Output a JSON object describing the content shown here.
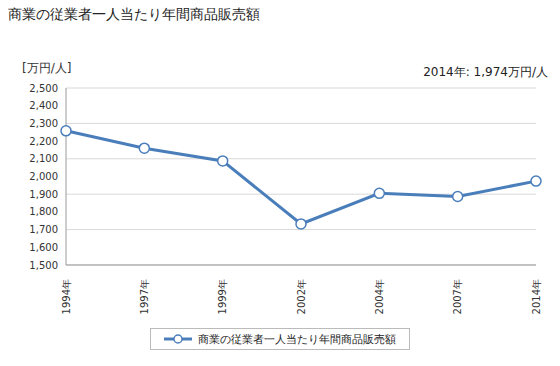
{
  "chart_data": {
    "type": "line",
    "title": "商業の従業者一人当たり年間商品販売額",
    "y_label": "[万円/人]",
    "annotation": "2014年: 1,974万円/人",
    "categories": [
      "1994年",
      "1997年",
      "1999年",
      "2002年",
      "2004年",
      "2007年",
      "2014年"
    ],
    "series": [
      {
        "name": "商業の従業者一人当たり年間商品販売額",
        "color": "#4a7ebb",
        "values": [
          2258,
          2160,
          2088,
          1732,
          1905,
          1887,
          1974
        ],
        "marker": "circle"
      }
    ],
    "ylim": [
      1500,
      2500
    ],
    "yticks": [
      {
        "value": 1500,
        "label": "1,500"
      },
      {
        "value": 1600,
        "label": "1,600"
      },
      {
        "value": 1700,
        "label": "1,700"
      },
      {
        "value": 1800,
        "label": "1,800"
      },
      {
        "value": 1900,
        "label": "1,900"
      },
      {
        "value": 2000,
        "label": "2,000"
      },
      {
        "value": 2100,
        "label": "2,100"
      },
      {
        "value": 2200,
        "label": "2,200"
      },
      {
        "value": 2300,
        "label": "2,300"
      },
      {
        "value": 2400,
        "label": "2,400"
      },
      {
        "value": 2500,
        "label": "2,500"
      }
    ],
    "grid": true,
    "legend": "bottom"
  }
}
